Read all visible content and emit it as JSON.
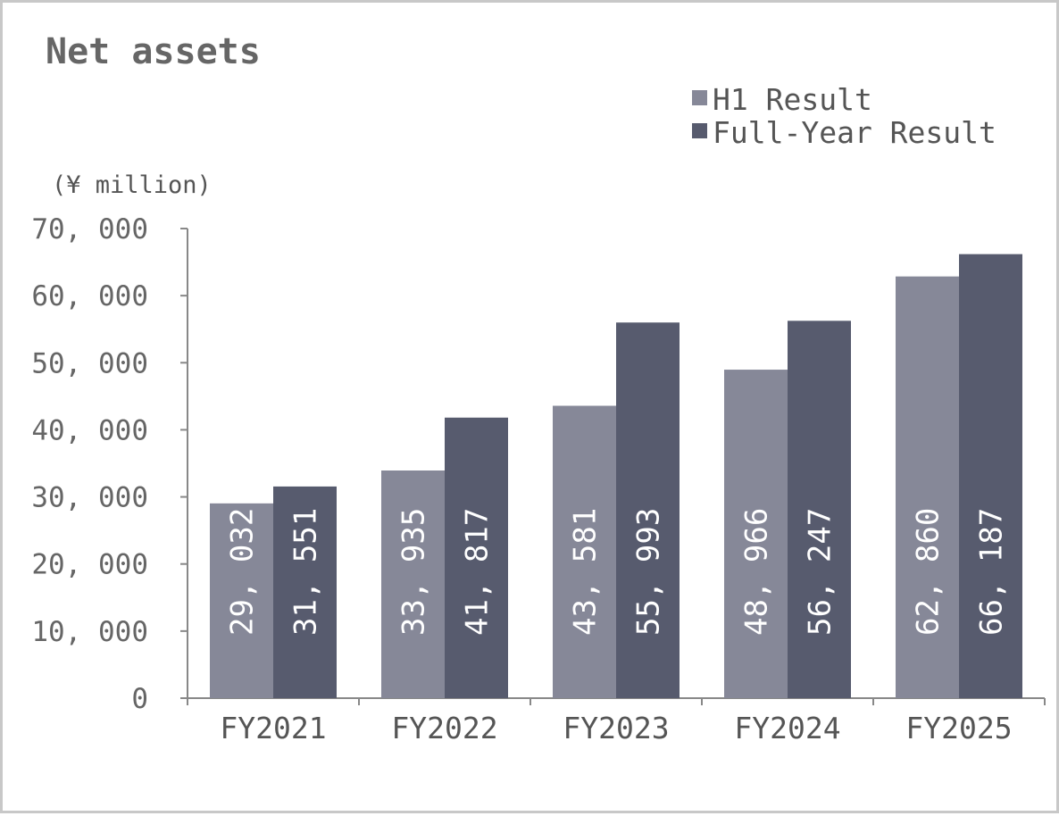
{
  "chart_data": {
    "type": "bar",
    "title": "Net assets",
    "unit_label": "(¥ million)",
    "categories": [
      "FY2021",
      "FY2022",
      "FY2023",
      "FY2024",
      "FY2025"
    ],
    "series": [
      {
        "name": "H1 Result",
        "color": "#868898",
        "values": [
          29032,
          33935,
          43581,
          48966,
          62860
        ],
        "labels": [
          "29, 032",
          "33, 935",
          "43, 581",
          "48, 966",
          "62, 860"
        ]
      },
      {
        "name": "Full-Year Result",
        "color": "#575b6e",
        "values": [
          31551,
          41817,
          55993,
          56247,
          66187
        ],
        "labels": [
          "31, 551",
          "41, 817",
          "55, 993",
          "56, 247",
          "66, 187"
        ]
      }
    ],
    "yticks": [
      0,
      10000,
      20000,
      30000,
      40000,
      50000,
      60000,
      70000
    ],
    "ytick_labels": [
      "0",
      "10, 000",
      "20, 000",
      "30, 000",
      "40, 000",
      "50, 000",
      "60, 000",
      "70, 000"
    ],
    "ylim": [
      0,
      70000
    ],
    "grid": false,
    "legend_position": "top-right"
  }
}
